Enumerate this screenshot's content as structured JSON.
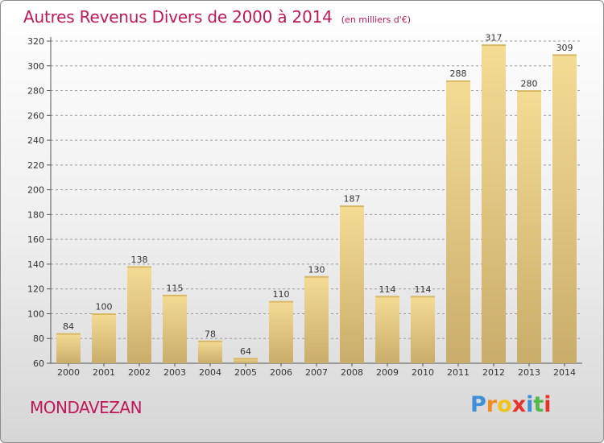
{
  "chart_data": {
    "type": "bar",
    "title": "Autres Revenus Divers de 2000 à 2014",
    "unit": "(en milliers d'€)",
    "categories": [
      "2000",
      "2001",
      "2002",
      "2003",
      "2004",
      "2005",
      "2006",
      "2007",
      "2008",
      "2009",
      "2010",
      "2011",
      "2012",
      "2013",
      "2014"
    ],
    "values": [
      84,
      100,
      138,
      115,
      78,
      64,
      110,
      130,
      187,
      114,
      114,
      288,
      317,
      280,
      309
    ],
    "ylim": [
      60,
      320
    ],
    "yticks": [
      "60",
      "80",
      "100",
      "120",
      "140",
      "160",
      "180",
      "200",
      "220",
      "240",
      "260",
      "280",
      "300",
      "320"
    ],
    "grid": true,
    "bar_color": "#e8cc82",
    "text_color": "#c0185a"
  },
  "location": "MONDAVEZAN",
  "brand": {
    "letters": [
      "P",
      "r",
      "o",
      "x",
      "i",
      "t",
      "i"
    ],
    "colors": [
      "#3f8fd8",
      "#f28c1e",
      "#f2c21e",
      "#e8332a",
      "#3f8fd8",
      "#52b848",
      "#e8332a"
    ]
  }
}
